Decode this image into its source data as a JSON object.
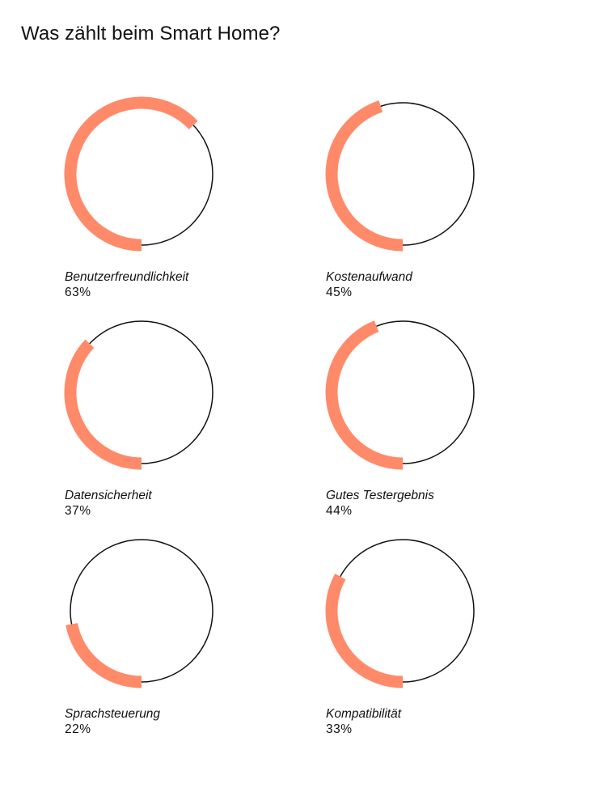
{
  "title": "Was zählt beim Smart Home?",
  "colors": {
    "accent": "#FF8A6A",
    "ring": "#111111",
    "background": "#FFFFFF"
  },
  "chart_data": {
    "type": "pie",
    "title": "Was zählt beim Smart Home?",
    "unit": "%",
    "items": [
      {
        "label": "Benutzerfreundlichkeit",
        "value": 63,
        "value_label": "63%"
      },
      {
        "label": "Kostenaufwand",
        "value": 45,
        "value_label": "45%"
      },
      {
        "label": "Datensicherheit",
        "value": 37,
        "value_label": "37%"
      },
      {
        "label": "Gutes Testergebnis",
        "value": 44,
        "value_label": "44%"
      },
      {
        "label": "Sprachsteuerung",
        "value": 22,
        "value_label": "22%"
      },
      {
        "label": "Kompatibilität",
        "value": 33,
        "value_label": "33%"
      }
    ]
  }
}
